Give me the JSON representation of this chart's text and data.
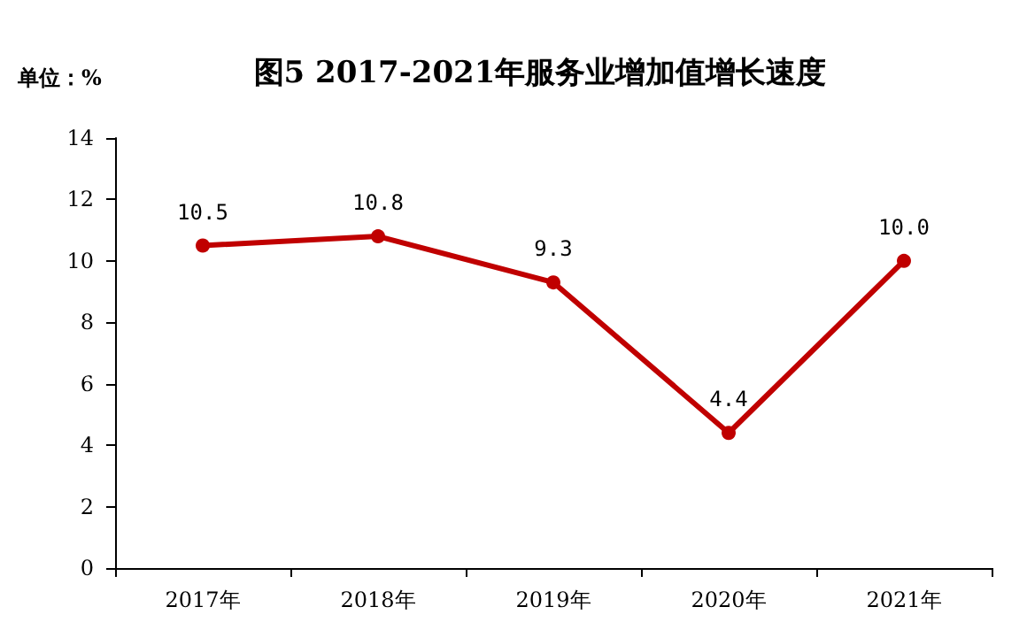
{
  "chart_data": {
    "type": "line",
    "title": "图5 2017-2021年服务业增加值增长速度",
    "ylabel": "单位：%",
    "categories": [
      "2017年",
      "2018年",
      "2019年",
      "2020年",
      "2021年"
    ],
    "series": [
      {
        "color": "#c00000",
        "values": [
          10.5,
          10.8,
          9.3,
          4.4,
          10.0
        ]
      }
    ],
    "value_labels": [
      "10.5",
      "10.8",
      "9.3",
      "4.4",
      "10.0"
    ],
    "ylim": [
      0,
      14
    ],
    "yticks": [
      0,
      2,
      4,
      6,
      8,
      10,
      12,
      14
    ],
    "grid": false,
    "marker": "circle",
    "line_style": "solid"
  }
}
